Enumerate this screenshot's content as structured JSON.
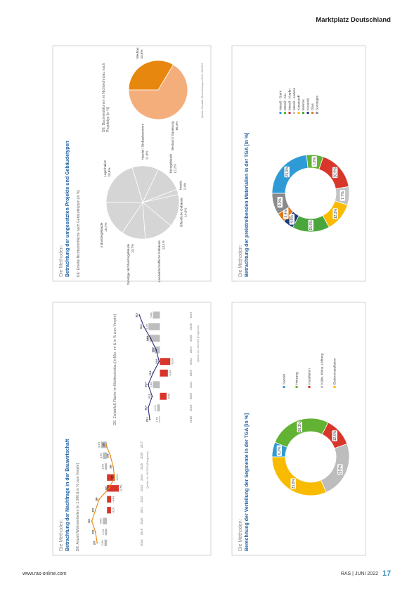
{
  "header": {
    "title": "Marktplatz Deutschland"
  },
  "footer": {
    "url": "www.ras-online.com",
    "issue": "RAS | JUNI 2022",
    "page": 17
  },
  "slides": [
    {
      "label": "Die Methoden:",
      "title": "Betrachtung der umgesetzten Projekte und Gebäudetypen",
      "source": "Quelle: Destatis, Berechnungen RAS, 06/2022",
      "charts": [
        {
          "type": "pie",
          "subtitle": "DE: Erteilte Nichtwohnfläche nach Gebäudetypen [in %]",
          "categories": [
            "Lagerhallen",
            "Handel / Einkaufszentren",
            "Bürogebäude",
            "Hotels",
            "Öffentliche Gebäude",
            "Landwirtschaftliche Gebäude",
            "Sonstige Nichtwohngebäude",
            "Industriegebäude"
          ],
          "values": [
            20.6,
            11.8,
            12.2,
            2.4,
            14.6,
            13.1,
            10.7,
            15.7
          ],
          "value_labels": [
            "20,6%",
            "11,8%",
            "12,2%",
            "2,4%",
            "14,6%",
            "13,1%",
            "10,7%",
            "15,7%"
          ],
          "color": "#d5d5d5"
        },
        {
          "type": "pie",
          "subtitle": "DE: Bauinvestitionen im Nichtwohnbau nach Projekttyp [in %]",
          "categories": [
            "Neubau",
            "Bestand / Sanierung"
          ],
          "values": [
            33.6,
            66.4
          ],
          "value_labels": [
            "33,6%",
            "66,4%"
          ],
          "colors": [
            "#e8870e",
            "#f4ae7c"
          ]
        }
      ]
    },
    {
      "label": "Die Methoden:",
      "title": "Betrachtung der preistreibenden Materialien in der TGA [in %]",
      "charts": [
        {
          "type": "donut",
          "categories": [
            "Metall - Stahl",
            "Metall - Alu",
            "Metall - Kupfer",
            "Metall - andere",
            "Kunststoff",
            "Elektrik",
            "Keramik",
            "Glas",
            "Sonstiges"
          ],
          "values": [
            23.3,
            7.0,
            16.9,
            7.7,
            12.2,
            15.6,
            4.5,
            3.8,
            9.0
          ],
          "value_labels": [
            "23,3%",
            "7,0%",
            "16,9%",
            "7,7%",
            "12,2%",
            "15,6%",
            "4,5%",
            "3,8%",
            "9,0%"
          ],
          "colors": [
            "#2f9bd6",
            "#62b234",
            "#d9362b",
            "#c4c4c4",
            "#f8bb00",
            "#4aa63c",
            "#1f3a7a",
            "#e07b1a",
            "#8a8a8a"
          ]
        }
      ]
    },
    {
      "label": "Die Methoden:",
      "title": "Betrachtung der Nachfrage in der Bauwirtschaft",
      "charts": [
        {
          "type": "combo",
          "subtitle": "DE: Anzahl Wohneinheiten [in 1.000 & in % zum Vorjahr]",
          "source": "Quelle: ifo, 06/2022 (Prognose)",
          "categories": [
            "2018",
            "2019",
            "2020",
            "2021",
            "2022",
            "2023",
            "2024",
            "2025",
            "2026",
            "2027"
          ],
          "ylim": [
            -30,
            20
          ],
          "y2lim": [
            150,
            320
          ],
          "series": [
            {
              "type": "bar",
              "color": "#bdbdbd",
              "negative_color": "#d9362b",
              "values": [
                2.6,
                2.1,
                4.4,
                -4.2,
                -4.4,
                -12.5,
                -8.2,
                2.2,
                4.3,
                6.3
              ],
              "value_labels": [
                "2,6%",
                "2,1%",
                "4,4%",
                "-4,2%",
                "-4,4%",
                "-12,5%",
                "-8,2%",
                "2,2%",
                "4,3%",
                "6,3%"
              ]
            },
            {
              "type": "line",
              "axis": "y2",
              "color": "#e8870e",
              "values": [
                287,
                293,
                306,
                293,
                280,
                245,
                225,
                230,
                240,
                255
              ]
            }
          ]
        },
        {
          "type": "combo",
          "subtitle": "DE: Zielabfluß Fläche im Nichtwohnbau [in Mio. m² & in % zum Vorjahr]",
          "source": "Quelle: ifo, 06/2022 (Prognose)",
          "categories": [
            "2018",
            "2019",
            "2020",
            "2021",
            "2022",
            "2023",
            "2024",
            "2025",
            "2026",
            "2027"
          ],
          "ylim": [
            -20,
            25
          ],
          "y2lim": [
            15,
            36
          ],
          "series": [
            {
              "type": "bar",
              "color": "#bdbdbd",
              "negative_color": "#d9362b",
              "values": [
                0.7,
                2.1,
                -5.4,
                5.4,
                -6.4,
                -8.3,
                4.3,
                8.3,
                9.1,
                5.4
              ],
              "value_labels": [
                "0,7%",
                "2,1%",
                "-5,4%",
                "5,4%",
                "-6,4%",
                "-8,3%",
                "4,3%",
                "8,3%",
                "9,1%",
                "5,4%"
              ]
            },
            {
              "type": "line",
              "axis": "y2",
              "color": "#2b2f7e",
              "values": [
                28.1,
                28.7,
                27.2,
                28.7,
                26.9,
                24.6,
                25.7,
                27.8,
                30.3,
                32.0
              ],
              "value_labels": [
                "28,1",
                "28,7",
                "27,2",
                "28,7",
                "26,9",
                "24,6",
                "25,7",
                "27,8",
                "30,3",
                "32,0"
              ]
            }
          ]
        }
      ]
    },
    {
      "label": "Die Methoden:",
      "title": "Berechnung der Verteilung der Segmente in der TGA [in %]",
      "charts": [
        {
          "type": "donut",
          "categories": [
            "Sanitär",
            "Heizung",
            "Installation",
            "Kälte, Klima, Lüftung",
            "Elektroinstallation"
          ],
          "values": [
            6.2,
            26.3,
            12.0,
            23.9,
            31.6
          ],
          "value_labels": [
            "6,2%",
            "26,3%",
            "12,0%",
            "23,9%",
            "31,6%"
          ],
          "colors": [
            "#2f9bd6",
            "#62b234",
            "#d9362b",
            "#bdbdbd",
            "#f8bb00"
          ]
        }
      ]
    }
  ]
}
